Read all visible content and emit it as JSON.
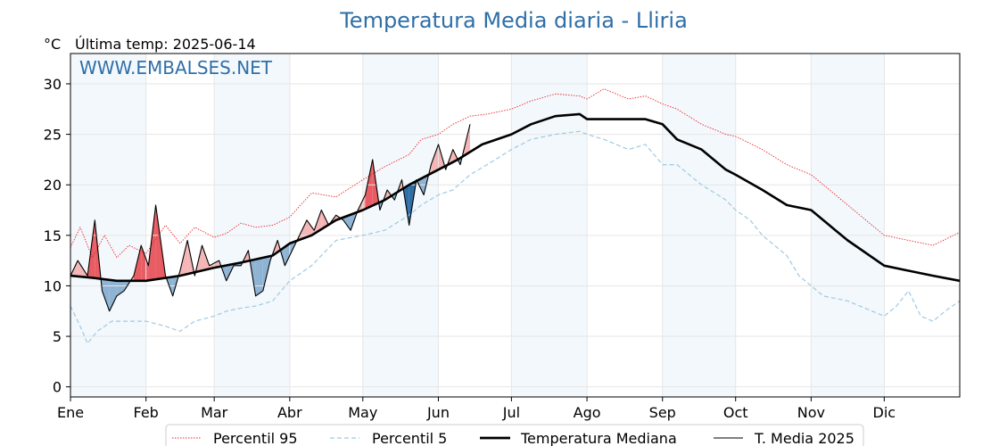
{
  "chart_data": {
    "type": "line",
    "title": "Temperatura Media diaria - Lliria",
    "ylabel": "°C",
    "subtitle": "Última temp: 2025-06-14",
    "watermark": "WWW.EMBALSES.NET",
    "ylim": [
      -1,
      33
    ],
    "xlim": [
      1,
      366
    ],
    "yticks": [
      0,
      5,
      10,
      15,
      20,
      25,
      30
    ],
    "x_unit": "day of year",
    "months": [
      {
        "label": "Ene",
        "start": 1
      },
      {
        "label": "Feb",
        "start": 32
      },
      {
        "label": "Mar",
        "start": 60
      },
      {
        "label": "Abr",
        "start": 91
      },
      {
        "label": "May",
        "start": 121
      },
      {
        "label": "Jun",
        "start": 152
      },
      {
        "label": "Jul",
        "start": 182
      },
      {
        "label": "Ago",
        "start": 213
      },
      {
        "label": "Sep",
        "start": 244
      },
      {
        "label": "Oct",
        "start": 274
      },
      {
        "label": "Nov",
        "start": 305
      },
      {
        "label": "Dic",
        "start": 335
      }
    ],
    "grid": true,
    "legend_position": "bottom",
    "series": [
      {
        "name": "Percentil 95",
        "color": "#e8282a",
        "style": "dotted",
        "x": [
          1,
          5,
          10,
          15,
          20,
          25,
          32,
          40,
          46,
          52,
          60,
          65,
          71,
          77,
          84,
          91,
          100,
          110,
          121,
          130,
          140,
          145,
          152,
          158,
          165,
          172,
          182,
          190,
          200,
          210,
          213,
          220,
          230,
          237,
          244,
          250,
          260,
          270,
          274,
          285,
          295,
          305,
          315,
          325,
          335,
          345,
          355,
          366
        ],
        "y": [
          13.8,
          15.8,
          12.8,
          15.0,
          12.8,
          14.0,
          13.2,
          16.0,
          14.2,
          15.8,
          14.8,
          15.2,
          16.2,
          15.8,
          16.0,
          16.8,
          19.2,
          18.8,
          20.5,
          21.8,
          23.0,
          24.5,
          25.0,
          26.0,
          26.8,
          27.0,
          27.5,
          28.3,
          29.0,
          28.8,
          28.5,
          29.5,
          28.5,
          28.8,
          28.0,
          27.5,
          26.0,
          25.0,
          24.8,
          23.5,
          22.0,
          21.0,
          19.0,
          17.0,
          15.0,
          14.5,
          14.0,
          15.3
        ]
      },
      {
        "name": "Percentil 5",
        "color": "#9ecae1",
        "style": "dashed",
        "x": [
          1,
          5,
          8,
          12,
          18,
          25,
          32,
          40,
          46,
          52,
          60,
          65,
          71,
          77,
          84,
          91,
          100,
          110,
          121,
          130,
          140,
          145,
          152,
          158,
          165,
          172,
          182,
          190,
          200,
          210,
          213,
          220,
          230,
          237,
          244,
          250,
          260,
          270,
          274,
          280,
          285,
          295,
          300,
          305,
          310,
          320,
          330,
          335,
          340,
          345,
          350,
          355,
          360,
          366
        ],
        "y": [
          8.0,
          6.0,
          4.3,
          5.5,
          6.5,
          6.5,
          6.5,
          6.0,
          5.5,
          6.5,
          7.0,
          7.5,
          7.8,
          8.0,
          8.5,
          10.5,
          12.0,
          14.5,
          15.0,
          15.5,
          17.0,
          18.0,
          19.0,
          19.5,
          21.0,
          22.0,
          23.5,
          24.5,
          25.0,
          25.3,
          25.0,
          24.5,
          23.5,
          24.0,
          22.0,
          22.0,
          20.0,
          18.5,
          17.5,
          16.5,
          15.0,
          13.0,
          11.0,
          10.0,
          9.0,
          8.5,
          7.5,
          7.0,
          8.0,
          9.5,
          7.0,
          6.5,
          7.5,
          8.5
        ]
      },
      {
        "name": "Temperatura Mediana",
        "color": "#000000",
        "style": "thick",
        "x": [
          1,
          10,
          20,
          32,
          46,
          60,
          71,
          84,
          91,
          100,
          110,
          121,
          130,
          140,
          152,
          160,
          170,
          182,
          190,
          200,
          210,
          213,
          220,
          230,
          237,
          244,
          250,
          260,
          270,
          274,
          285,
          295,
          305,
          315,
          320,
          335,
          345,
          355,
          366
        ],
        "y": [
          11.0,
          10.8,
          10.5,
          10.5,
          11.0,
          11.8,
          12.3,
          13.0,
          14.2,
          15.0,
          16.5,
          17.5,
          18.5,
          20.0,
          21.5,
          22.5,
          24.0,
          25.0,
          26.0,
          26.8,
          27.0,
          26.5,
          26.5,
          26.5,
          26.5,
          26.0,
          24.5,
          23.5,
          21.5,
          21.0,
          19.5,
          18.0,
          17.5,
          15.5,
          14.5,
          12.0,
          11.5,
          11.0,
          10.5
        ]
      },
      {
        "name": "T. Media 2025",
        "color": "#000000",
        "style": "thin",
        "x": [
          1,
          4,
          8,
          11,
          14,
          17,
          20,
          23,
          27,
          30,
          33,
          36,
          40,
          43,
          46,
          49,
          52,
          55,
          58,
          62,
          65,
          68,
          71,
          74,
          77,
          80,
          83,
          86,
          89,
          92,
          95,
          98,
          101,
          104,
          107,
          110,
          113,
          116,
          119,
          122,
          125,
          128,
          131,
          134,
          137,
          140,
          143,
          146,
          149,
          152,
          155,
          158,
          161,
          165
        ],
        "y": [
          11.0,
          12.5,
          11.0,
          16.5,
          9.5,
          7.5,
          9.0,
          9.5,
          11.0,
          14.0,
          12.0,
          18.0,
          11.0,
          9.0,
          11.5,
          14.5,
          11.0,
          14.0,
          12.0,
          12.5,
          10.5,
          12.0,
          12.0,
          13.5,
          9.0,
          9.5,
          12.5,
          14.5,
          12.0,
          13.5,
          15.0,
          16.5,
          15.5,
          17.5,
          16.0,
          17.0,
          16.5,
          15.5,
          17.5,
          19.0,
          22.5,
          17.5,
          19.5,
          18.5,
          20.5,
          16.0,
          20.5,
          19.0,
          22.0,
          24.0,
          21.5,
          23.5,
          22.0,
          26.0
        ]
      }
    ]
  }
}
